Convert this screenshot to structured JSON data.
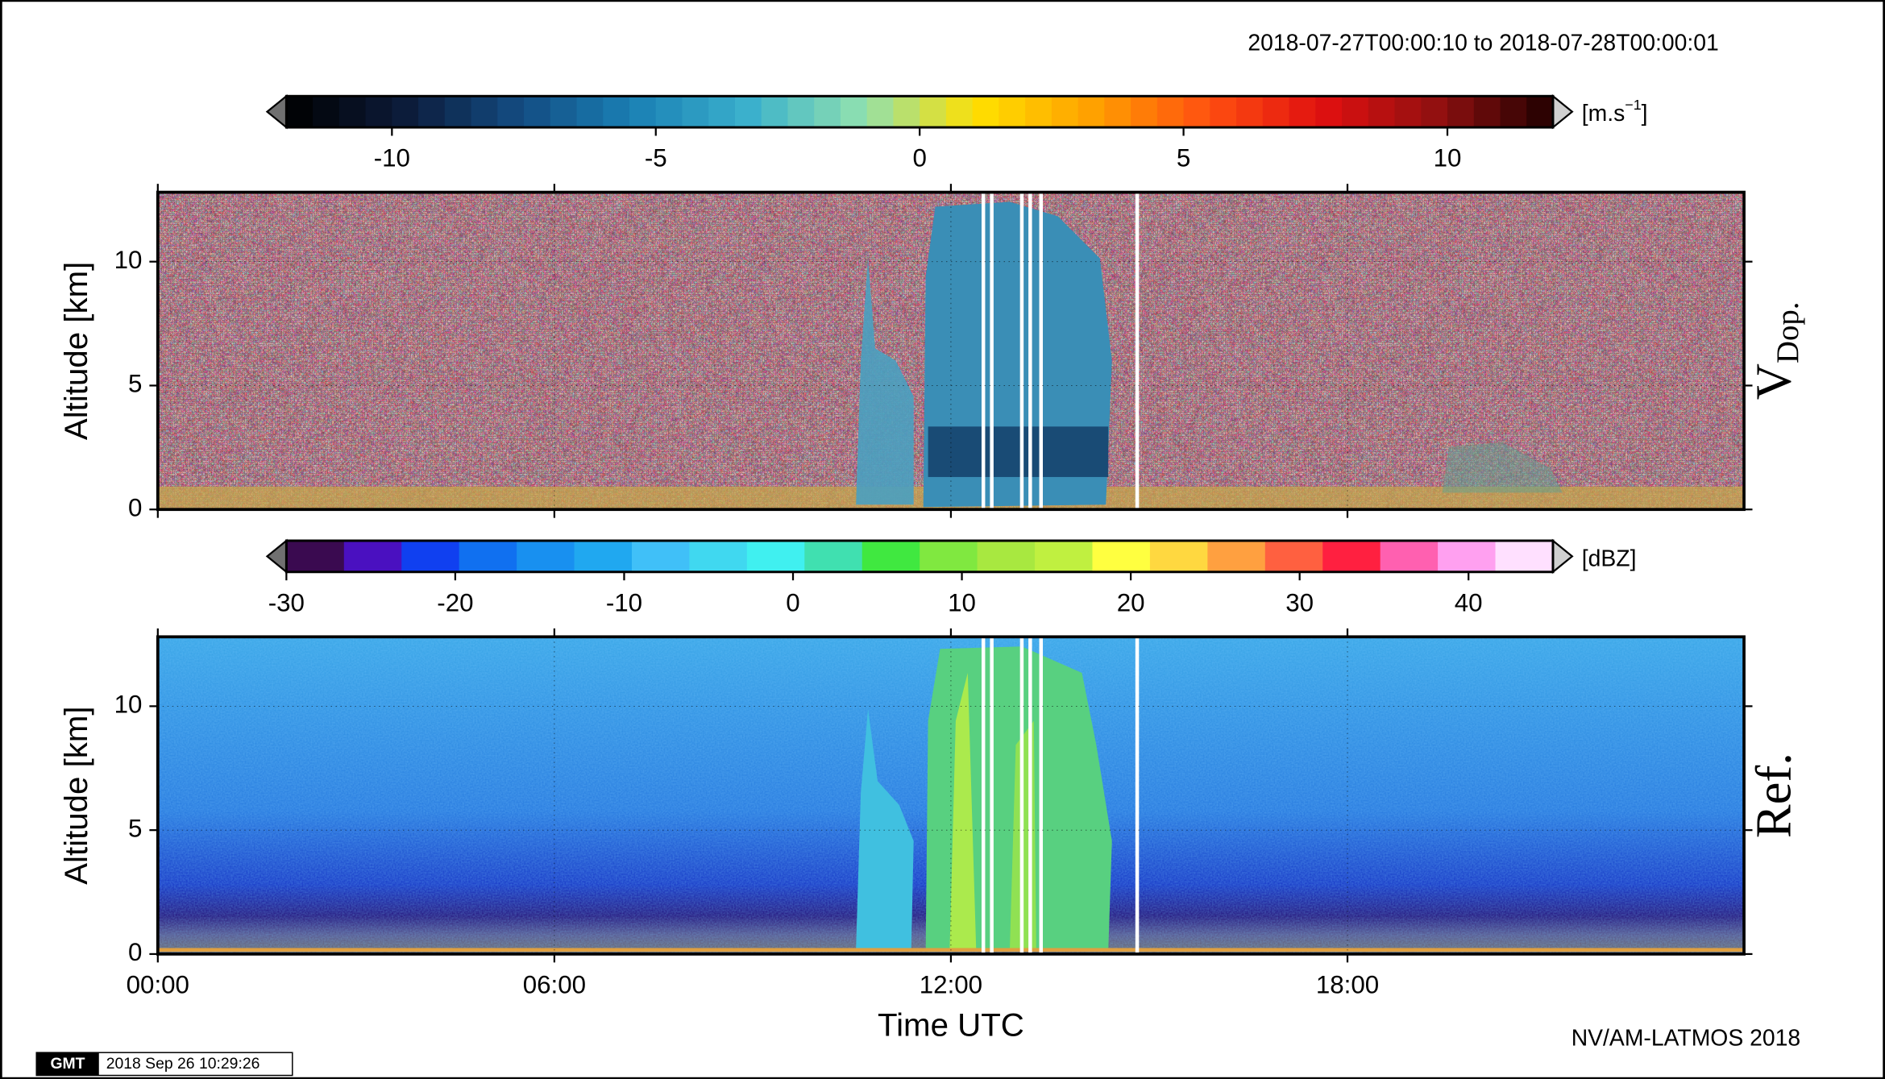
{
  "chart_data": {
    "type": "heatmap",
    "title": "2018-07-27T00:00:10 to 2018-07-28T00:00:01",
    "xlabel": "Time UTC",
    "xlim": [
      0,
      24
    ],
    "xticks": [
      {
        "value": 0,
        "label": "00:00"
      },
      {
        "value": 6,
        "label": "06:00"
      },
      {
        "value": 12,
        "label": "12:00"
      },
      {
        "value": 18,
        "label": "18:00"
      }
    ],
    "panels": [
      {
        "label": "V",
        "label_sub": "Dop.",
        "ylabel": "Altitude [km]",
        "ylim": [
          0,
          12.8
        ],
        "yticks": [
          0,
          5,
          10
        ],
        "colorbar": {
          "unit": "[m.s",
          "unit_sup": "−1",
          "unit_close": "]",
          "clim": [
            -12,
            12
          ],
          "bins": 48,
          "color_stops": [
            "#000000",
            "#0c1a38",
            "#134a80",
            "#1a7fb4",
            "#3ab0cc",
            "#8fe0b0",
            "#ffe000",
            "#ffa000",
            "#ff5010",
            "#e01010",
            "#901010",
            "#200000"
          ],
          "ticks": [
            -10,
            -5,
            0,
            5,
            10
          ]
        }
      },
      {
        "label": "Ref.",
        "ylabel": "Altitude [km]",
        "ylim": [
          0,
          12.8
        ],
        "yticks": [
          0,
          5,
          10
        ],
        "colorbar": {
          "unit": "[dBZ]",
          "clim": [
            -30,
            45
          ],
          "colors": [
            "#3a0a50",
            "#4a10c0",
            "#1040f0",
            "#1070f0",
            "#1890f0",
            "#20a8f0",
            "#40c0f8",
            "#40d8f0",
            "#40f0f0",
            "#40e0b0",
            "#40e840",
            "#80e840",
            "#a8e840",
            "#c0f040",
            "#ffff40",
            "#ffd840",
            "#ffa040",
            "#ff6040",
            "#ff2040",
            "#ff60b0",
            "#ffa0f0",
            "#ffe0ff"
          ],
          "ticks": [
            -30,
            -20,
            -10,
            0,
            10,
            20,
            30,
            40
          ]
        }
      }
    ],
    "credit": "NV/AM-LATMOS 2018",
    "logo": "GMT",
    "timestamp": "2018 Sep 26 10:29:26"
  }
}
